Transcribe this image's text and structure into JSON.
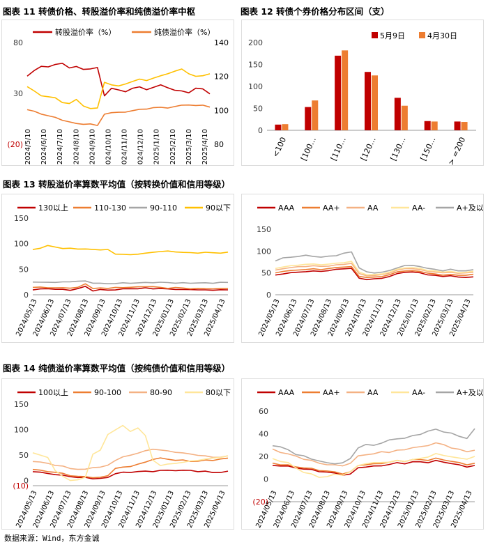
{
  "titles": {
    "fig11": "图表 11  转债价格、转股溢价率和纯债溢价率中枢",
    "fig12": "图表 12  转债个券价格分布区间（支）",
    "fig13": "图表 13  转股溢价率算数平均值（按转换价值和信用等级）",
    "fig14": "图表 14  纯债溢价率算数平均值（按纯债价值和信用等级）"
  },
  "source": "数据来源：Wind，东方金诚",
  "chart_data": [
    {
      "id": "fig11",
      "type": "line",
      "title": "转债价格、转股溢价率和纯债溢价率中枢",
      "legend": [
        "转股溢价率（%）",
        "纯债溢价率（%）"
      ],
      "left_axis": {
        "ticks": [
          "80",
          "30",
          "(20)"
        ],
        "range": [
          -20,
          80
        ]
      },
      "right_axis": {
        "ticks": [
          "140",
          "120",
          "100",
          "80"
        ],
        "range": [
          80,
          140
        ]
      },
      "x_ticks": [
        "2024/5/10",
        "2024/6/10",
        "2024/7/10",
        "2024/8/10",
        "2024/9/10",
        "2024/10/10",
        "2024/11/10",
        "2024/12/10",
        "2025/1/10",
        "2025/2/10",
        "2025/3/10",
        "2025/4/10"
      ],
      "series": [
        {
          "name": "转股溢价率（%）",
          "axis": "left",
          "color": "#c00000",
          "values": [
            47,
            52,
            57,
            56,
            58,
            60,
            55,
            56,
            54,
            54,
            55,
            28,
            35,
            33,
            32,
            35,
            36,
            34,
            36,
            38,
            36,
            33,
            32,
            31,
            35,
            34,
            30
          ]
        },
        {
          "name": "纯债溢价率（%）",
          "axis": "left",
          "color": "#ed7d31",
          "values": [
            14,
            12,
            10,
            8,
            6,
            4,
            2,
            0,
            0,
            0,
            -2,
            10,
            11,
            11,
            12,
            13,
            14,
            15,
            16,
            16,
            16,
            17,
            18,
            19,
            18,
            18,
            17
          ]
        },
        {
          "name": "转债价格",
          "axis": "right",
          "color": "#ffc000",
          "values": [
            114,
            111,
            109,
            108,
            107,
            105,
            104,
            106,
            103,
            101,
            101,
            117,
            115,
            114,
            116,
            117,
            118,
            118,
            119,
            120,
            122,
            123,
            124,
            122,
            120,
            120,
            122
          ]
        }
      ]
    },
    {
      "id": "fig12",
      "type": "bar",
      "title": "转债个券价格分布区间（支）",
      "categories": [
        "<100",
        "[100...",
        "[110...",
        "[120...",
        "[130...",
        "[150...",
        "> =200"
      ],
      "series": [
        {
          "name": "5月9日",
          "color": "#c00000",
          "values": [
            13,
            53,
            170,
            133,
            74,
            21,
            20
          ]
        },
        {
          "name": "4月30日",
          "color": "#ed7d31",
          "values": [
            14,
            68,
            182,
            125,
            56,
            20,
            19
          ]
        }
      ],
      "ylim": [
        0,
        200
      ],
      "y_ticks": [
        "200",
        "150",
        "100",
        "50",
        "0"
      ]
    },
    {
      "id": "fig13a",
      "type": "line",
      "legend": [
        "130以上",
        "110-130",
        "90-110",
        "90以下"
      ],
      "ylim": [
        0,
        150
      ],
      "y_ticks": [
        "150",
        "100",
        "50",
        "0"
      ],
      "x_ticks": [
        "2024/05/13",
        "2024/06/13",
        "2024/07/13",
        "2024/08/13",
        "2024/09/13",
        "2024/10/13",
        "2024/11/13",
        "2024/12/13",
        "2025/01/13",
        "2025/02/13",
        "2025/03/13",
        "2025/04/13"
      ],
      "series": [
        {
          "name": "130以上",
          "color": "#c00000",
          "values": [
            10,
            11,
            12,
            11,
            10,
            9,
            12,
            16,
            8,
            10,
            9,
            10,
            11,
            12,
            12,
            13,
            12,
            12,
            11,
            11,
            10,
            10,
            10,
            9,
            9,
            10,
            9
          ]
        },
        {
          "name": "110-130",
          "color": "#ed7d31",
          "values": [
            14,
            15,
            14,
            13,
            14,
            13,
            14,
            22,
            12,
            13,
            13,
            14,
            14,
            15,
            15,
            16,
            16,
            14,
            13,
            14,
            13,
            12,
            12,
            12,
            12,
            12,
            13
          ]
        },
        {
          "name": "90-110",
          "color": "#a5a5a5",
          "values": [
            25,
            24,
            25,
            24,
            25,
            26,
            26,
            27,
            23,
            22,
            22,
            22,
            23,
            23,
            23,
            24,
            24,
            24,
            24,
            23,
            23,
            23,
            23,
            23,
            23,
            24,
            24
          ]
        },
        {
          "name": "90以下",
          "color": "#ffc000",
          "values": [
            89,
            91,
            96,
            94,
            90,
            91,
            90,
            89,
            89,
            88,
            88,
            80,
            79,
            78,
            80,
            81,
            83,
            85,
            85,
            84,
            83,
            82,
            82,
            83,
            82,
            82,
            83
          ]
        }
      ]
    },
    {
      "id": "fig13b",
      "type": "line",
      "legend": [
        "AAA",
        "AA+",
        "AA",
        "AA-",
        "A+及以下"
      ],
      "ylim": [
        0,
        150
      ],
      "y_ticks": [
        "150",
        "100",
        "50",
        "0"
      ],
      "x_ticks": [
        "2024/05/13",
        "2024/06/13",
        "2024/07/13",
        "2024/08/13",
        "2024/09/13",
        "2024/10/13",
        "2024/11/13",
        "2024/12/13",
        "2025/01/13",
        "2025/02/13",
        "2025/03/13",
        "2025/04/13"
      ],
      "series": [
        {
          "name": "AAA",
          "color": "#c00000",
          "values": [
            45,
            48,
            50,
            52,
            53,
            54,
            54,
            55,
            58,
            60,
            60,
            38,
            35,
            36,
            38,
            42,
            48,
            52,
            52,
            50,
            46,
            44,
            42,
            44,
            40,
            40,
            41
          ]
        },
        {
          "name": "AA+",
          "color": "#ed7d31",
          "values": [
            50,
            54,
            55,
            57,
            58,
            59,
            58,
            60,
            62,
            64,
            64,
            42,
            40,
            40,
            42,
            46,
            52,
            55,
            55,
            53,
            50,
            47,
            45,
            47,
            44,
            45,
            47
          ]
        },
        {
          "name": "AA",
          "color": "#f4b183",
          "values": [
            56,
            60,
            62,
            64,
            65,
            66,
            65,
            66,
            68,
            70,
            72,
            48,
            44,
            44,
            46,
            50,
            56,
            60,
            60,
            57,
            54,
            52,
            50,
            52,
            49,
            50,
            52
          ]
        },
        {
          "name": "AA-",
          "color": "#ffe699",
          "values": [
            60,
            64,
            66,
            68,
            70,
            70,
            69,
            70,
            72,
            74,
            76,
            52,
            46,
            46,
            48,
            52,
            58,
            62,
            62,
            60,
            56,
            54,
            52,
            54,
            50,
            52,
            54
          ]
        },
        {
          "name": "A+及以下",
          "color": "#a5a5a5",
          "values": [
            78,
            84,
            86,
            88,
            90,
            88,
            86,
            88,
            90,
            95,
            98,
            62,
            52,
            50,
            52,
            55,
            62,
            67,
            67,
            65,
            60,
            58,
            55,
            58,
            55,
            55,
            57
          ]
        }
      ]
    },
    {
      "id": "fig14a",
      "type": "line",
      "legend": [
        "100以上",
        "90-100",
        "80-90",
        "80以下"
      ],
      "ylim": [
        -10,
        150
      ],
      "y_ticks": [
        "150",
        "100",
        "50",
        "0",
        "(10)"
      ],
      "x_ticks": [
        "2024/05/13",
        "2024/06/13",
        "2024/07/13",
        "2024/08/13",
        "2024/09/13",
        "2024/10/13",
        "2024/11/13",
        "2024/12/13",
        "2025/01/13",
        "2025/02/13",
        "2025/03/13",
        "2025/04/13"
      ],
      "series": [
        {
          "name": "100以上",
          "color": "#c00000",
          "values": [
            18,
            16,
            14,
            12,
            10,
            8,
            6,
            6,
            4,
            4,
            6,
            14,
            16,
            16,
            18,
            18,
            18,
            20,
            20,
            20,
            20,
            20,
            18,
            18,
            16,
            16,
            18
          ]
        },
        {
          "name": "90-100",
          "color": "#ed7d31",
          "values": [
            22,
            20,
            18,
            16,
            14,
            10,
            8,
            8,
            6,
            6,
            10,
            24,
            26,
            28,
            32,
            36,
            42,
            44,
            42,
            40,
            40,
            38,
            38,
            40,
            40,
            42,
            44
          ]
        },
        {
          "name": "80-90",
          "color": "#f4b183",
          "values": [
            38,
            36,
            34,
            30,
            28,
            24,
            22,
            22,
            26,
            26,
            30,
            40,
            46,
            50,
            54,
            58,
            62,
            60,
            58,
            56,
            54,
            52,
            50,
            48,
            46,
            46,
            48
          ]
        },
        {
          "name": "80以下",
          "color": "#ffe699",
          "values": [
            55,
            50,
            45,
            20,
            8,
            0,
            2,
            6,
            52,
            60,
            90,
            100,
            108,
            96,
            104,
            88,
            40,
            30,
            32,
            34,
            36,
            38,
            40,
            42,
            44,
            46,
            48
          ]
        }
      ]
    },
    {
      "id": "fig14b",
      "type": "line",
      "legend": [
        "AAA",
        "AA+",
        "AA",
        "AA-",
        "A+及以下"
      ],
      "ylim": [
        -20,
        60
      ],
      "y_ticks": [
        "60",
        "40",
        "20",
        "0",
        "(20)"
      ],
      "x_ticks": [
        "2024/05/13",
        "2024/06/13",
        "2024/07/13",
        "2024/08/13",
        "2024/09/13",
        "2024/10/13",
        "2024/11/13",
        "2024/12/13",
        "2025/01/13",
        "2025/02/13",
        "2025/03/13",
        "2025/04/13"
      ],
      "series": [
        {
          "name": "AAA",
          "color": "#c00000",
          "values": [
            12,
            12,
            11,
            10,
            9,
            8,
            7,
            6,
            5,
            4,
            4,
            10,
            11,
            11,
            12,
            13,
            14,
            14,
            15,
            15,
            15,
            16,
            15,
            14,
            12,
            11,
            12
          ]
        },
        {
          "name": "AA+",
          "color": "#ed7d31",
          "values": [
            14,
            13,
            12,
            11,
            10,
            9,
            8,
            7,
            6,
            5,
            6,
            12,
            13,
            13,
            14,
            15,
            16,
            16,
            17,
            17,
            17,
            18,
            17,
            16,
            14,
            13,
            14
          ]
        },
        {
          "name": "AA",
          "color": "#f4b183",
          "values": [
            26,
            24,
            22,
            20,
            18,
            16,
            14,
            13,
            12,
            12,
            14,
            20,
            22,
            22,
            24,
            24,
            25,
            26,
            28,
            28,
            30,
            32,
            30,
            28,
            26,
            24,
            26
          ]
        },
        {
          "name": "AA-",
          "color": "#ffe699",
          "values": [
            18,
            16,
            14,
            10,
            6,
            4,
            2,
            2,
            4,
            4,
            6,
            12,
            14,
            14,
            15,
            15,
            16,
            16,
            17,
            18,
            20,
            22,
            21,
            20,
            18,
            18,
            20
          ]
        },
        {
          "name": "A+及以下",
          "color": "#a5a5a5",
          "values": [
            30,
            28,
            26,
            22,
            20,
            18,
            16,
            14,
            14,
            14,
            18,
            28,
            30,
            30,
            32,
            34,
            36,
            36,
            38,
            40,
            42,
            44,
            42,
            40,
            38,
            36,
            44
          ]
        }
      ]
    }
  ]
}
